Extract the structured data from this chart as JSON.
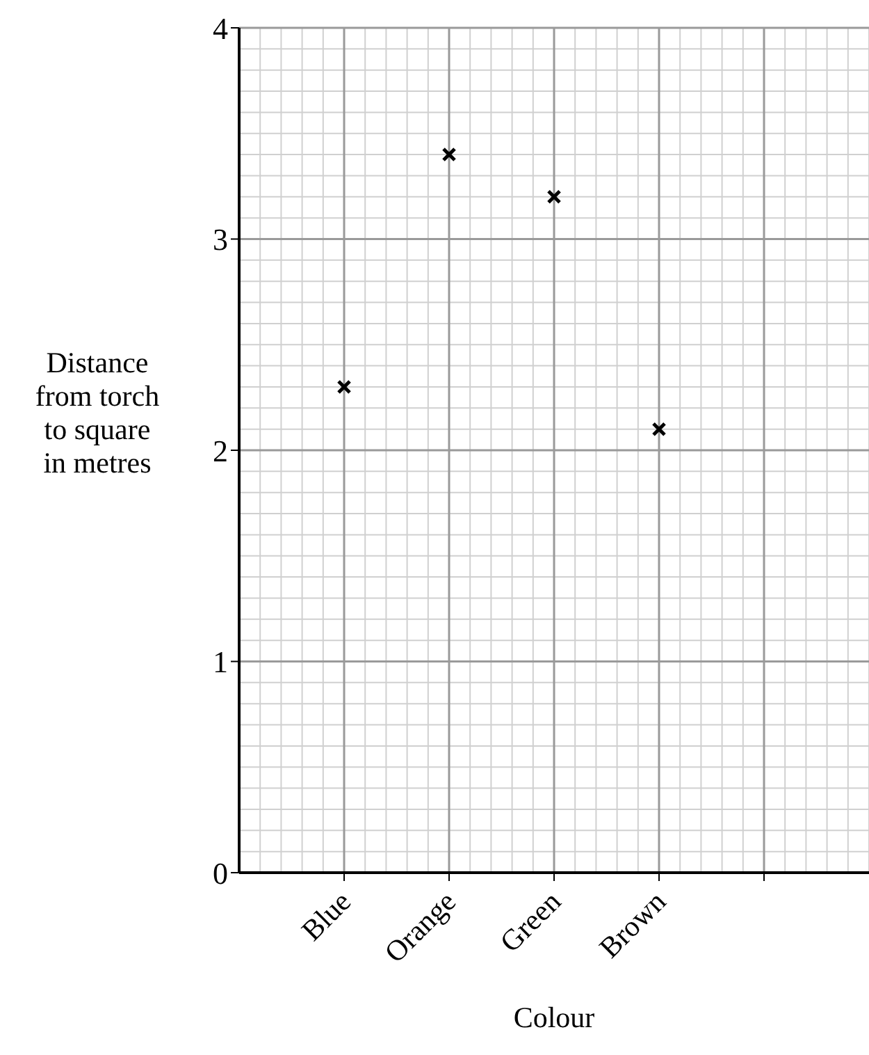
{
  "chart_data": {
    "type": "scatter",
    "xlabel": "Colour",
    "ylabel": "Distance from torch to square in metres",
    "categories": [
      "Blue",
      "Orange",
      "Green",
      "Brown",
      null
    ],
    "values": [
      2.3,
      3.4,
      3.2,
      2.1,
      null
    ],
    "color": "#000000",
    "marker": "cross",
    "grid": true,
    "ylim": [
      0,
      4
    ],
    "yticks": [
      0,
      1,
      2,
      3,
      4
    ]
  }
}
